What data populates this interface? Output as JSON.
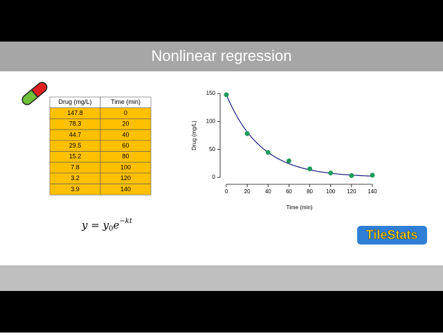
{
  "title": "Nonlinear regression",
  "table": {
    "header": [
      "Drug (mg/L)",
      "Time (min)"
    ],
    "rows": [
      [
        "147.8",
        "0"
      ],
      [
        "78.3",
        "20"
      ],
      [
        "44.7",
        "40"
      ],
      [
        "29.5",
        "60"
      ],
      [
        "15.2",
        "80"
      ],
      [
        "7.8",
        "100"
      ],
      [
        "3.2",
        "120"
      ],
      [
        "3.9",
        "140"
      ]
    ]
  },
  "formula": {
    "lhs": "y",
    "eq": "=",
    "base": "y",
    "sub": "0",
    "exp": "e",
    "power": "−kt"
  },
  "logo": "TileStats",
  "chart_data": {
    "type": "scatter",
    "x": [
      0,
      20,
      40,
      60,
      80,
      100,
      120,
      140
    ],
    "series": [
      {
        "name": "Drug",
        "color": "#1f9a5e",
        "values": [
          147.8,
          78.3,
          44.7,
          29.5,
          15.2,
          7.8,
          3.2,
          3.9
        ]
      }
    ],
    "fit": {
      "y0": 148,
      "k": 0.03,
      "color": "#1a1a7a"
    },
    "xlabel": "Time (min)",
    "ylabel": "Drug (mg/L)",
    "xlim": [
      0,
      140
    ],
    "ylim": [
      0,
      150
    ],
    "xticks": [
      0,
      20,
      40,
      60,
      80,
      100,
      120,
      140
    ],
    "yticks": [
      0,
      50,
      100,
      150
    ]
  }
}
